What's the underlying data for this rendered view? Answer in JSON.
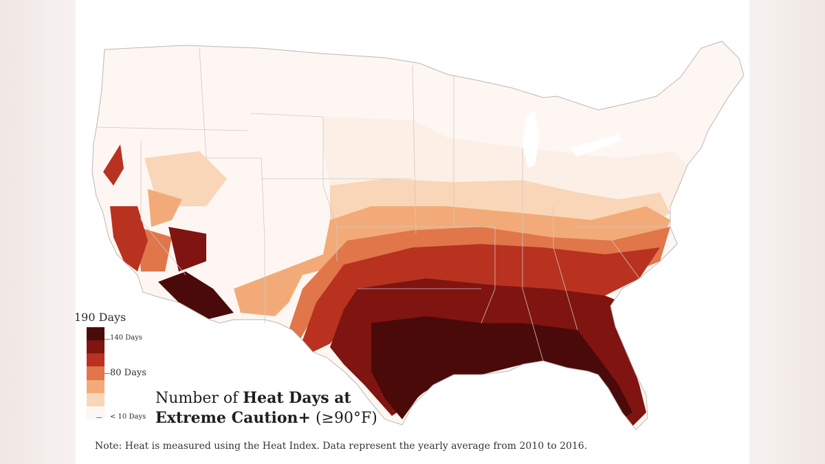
{
  "colors": {
    "scale": [
      "#4b0a0a",
      "#7f1410",
      "#b8321f",
      "#e0764a",
      "#f2ab78",
      "#f9d6b8",
      "#fcefe6",
      "#fdf6f2"
    ],
    "border": "#c9c2bf",
    "water": "#ffffff"
  },
  "legend": {
    "title": "190 Days",
    "labels": {
      "l140": "140 Days",
      "l80": "80 Days",
      "l10": "< 10 Days"
    }
  },
  "title": {
    "line1_plain": "Number of ",
    "line1_bold": "Heat Days at",
    "line2_bold": "Extreme Caution+",
    "line2_plain": " (≥90°F)"
  },
  "note": "Note: Heat is measured using the Heat Index. Data represent the yearly average from 2010 to 2016."
}
